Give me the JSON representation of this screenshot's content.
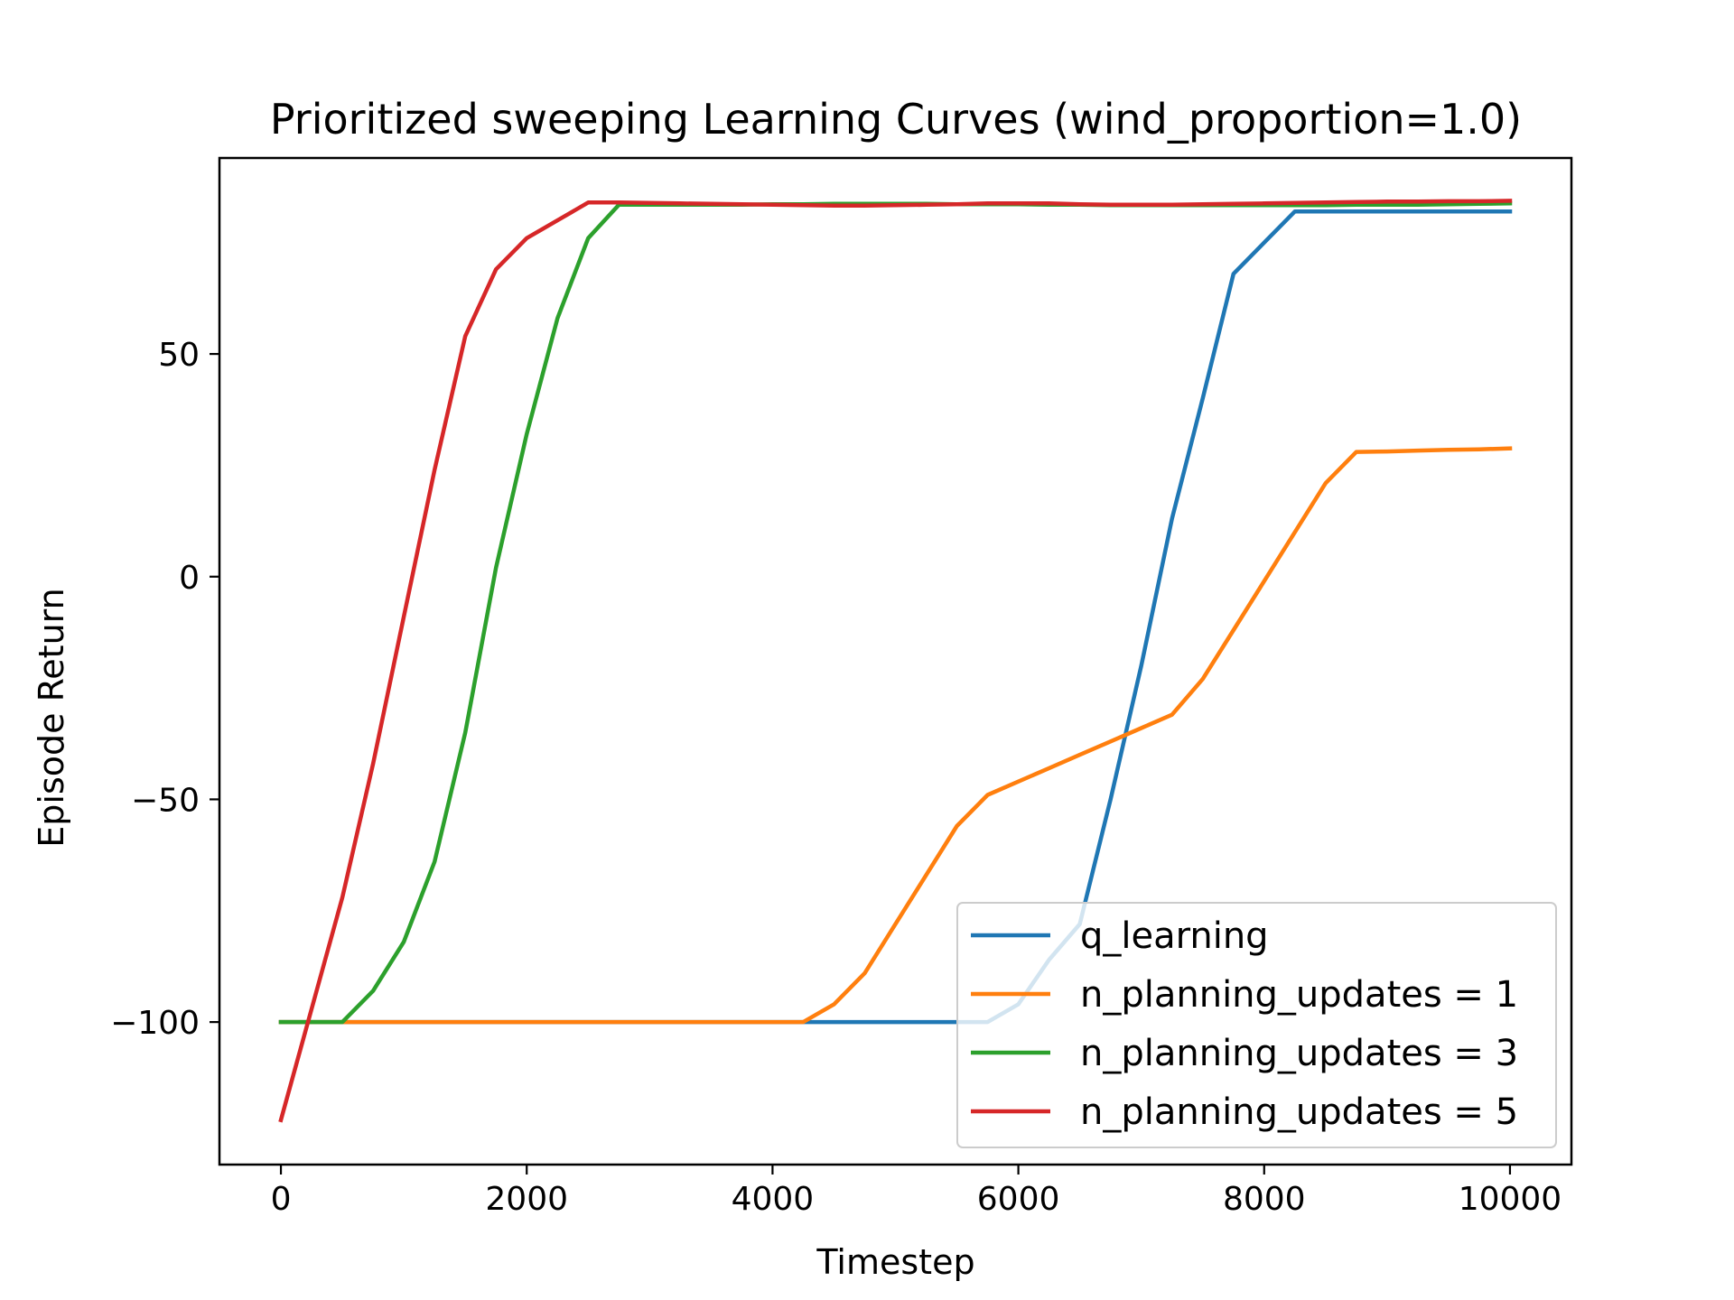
{
  "chart_data": {
    "type": "line",
    "title": "Prioritized sweeping Learning Curves (wind_proportion=1.0)",
    "xlabel": "Timestep",
    "ylabel": "Episode Return",
    "xlim": [
      -500,
      10500
    ],
    "ylim": [
      -132,
      94
    ],
    "xticks": [
      0,
      2000,
      4000,
      6000,
      8000,
      10000
    ],
    "xtick_labels": [
      "0",
      "2000",
      "4000",
      "6000",
      "8000",
      "10000"
    ],
    "yticks": [
      50,
      0,
      -50,
      -100
    ],
    "ytick_labels": [
      "50",
      "0",
      "−50",
      "−100"
    ],
    "grid": false,
    "legend_position": "lower-right",
    "x": [
      0,
      250,
      500,
      750,
      1000,
      1250,
      1500,
      1750,
      2000,
      2250,
      2500,
      2750,
      3000,
      3250,
      3500,
      3750,
      4000,
      4250,
      4500,
      4750,
      5000,
      5250,
      5500,
      5750,
      6000,
      6250,
      6500,
      6750,
      7000,
      7250,
      7500,
      7750,
      8000,
      8250,
      8500,
      8750,
      9000,
      9250,
      9500,
      9750,
      10000
    ],
    "series": [
      {
        "name": "q_learning",
        "color": "#1f77b4",
        "values": [
          -100,
          -100,
          -100,
          -100,
          -100,
          -100,
          -100,
          -100,
          -100,
          -100,
          -100,
          -100,
          -100,
          -100,
          -100,
          -100,
          -100,
          -100,
          -100,
          -100,
          -100,
          -100,
          -100,
          -100,
          -96,
          -86,
          -78,
          -50,
          -20,
          13,
          40,
          68,
          75,
          82,
          82,
          82,
          82,
          82,
          82,
          82,
          82
        ]
      },
      {
        "name": "n_planning_updates = 1",
        "color": "#ff7f0e",
        "values": [
          -100,
          -100,
          -100,
          -100,
          -100,
          -100,
          -100,
          -100,
          -100,
          -100,
          -100,
          -100,
          -100,
          -100,
          -100,
          -100,
          -100,
          -100,
          -96,
          -89,
          -78,
          -67,
          -56,
          -49,
          -46,
          -43,
          -40,
          -37,
          -34,
          -31,
          -23,
          -12,
          -1,
          10,
          21,
          28,
          28.1,
          28.3,
          28.5,
          28.6,
          28.8
        ]
      },
      {
        "name": "n_planning_updates = 3",
        "color": "#2ca02c",
        "values": [
          -100,
          -100,
          -100,
          -93,
          -82,
          -64,
          -35,
          2,
          32,
          58,
          76,
          83.5,
          83.5,
          83.5,
          83.5,
          83.5,
          83.6,
          83.6,
          83.7,
          83.7,
          83.7,
          83.7,
          83.6,
          83.6,
          83.6,
          83.5,
          83.5,
          83.4,
          83.4,
          83.4,
          83.4,
          83.4,
          83.4,
          83.4,
          83.4,
          83.5,
          83.5,
          83.5,
          83.6,
          83.7,
          83.8
        ]
      },
      {
        "name": "n_planning_updates = 5",
        "color": "#d62728",
        "values": [
          -122,
          -97,
          -72,
          -42,
          -9,
          24,
          54,
          69,
          76,
          80,
          84,
          84,
          83.9,
          83.8,
          83.7,
          83.6,
          83.5,
          83.4,
          83.3,
          83.3,
          83.4,
          83.5,
          83.6,
          83.8,
          83.8,
          83.8,
          83.6,
          83.5,
          83.5,
          83.5,
          83.6,
          83.7,
          83.8,
          83.9,
          84,
          84.1,
          84.2,
          84.2,
          84.3,
          84.3,
          84.4
        ]
      }
    ]
  }
}
